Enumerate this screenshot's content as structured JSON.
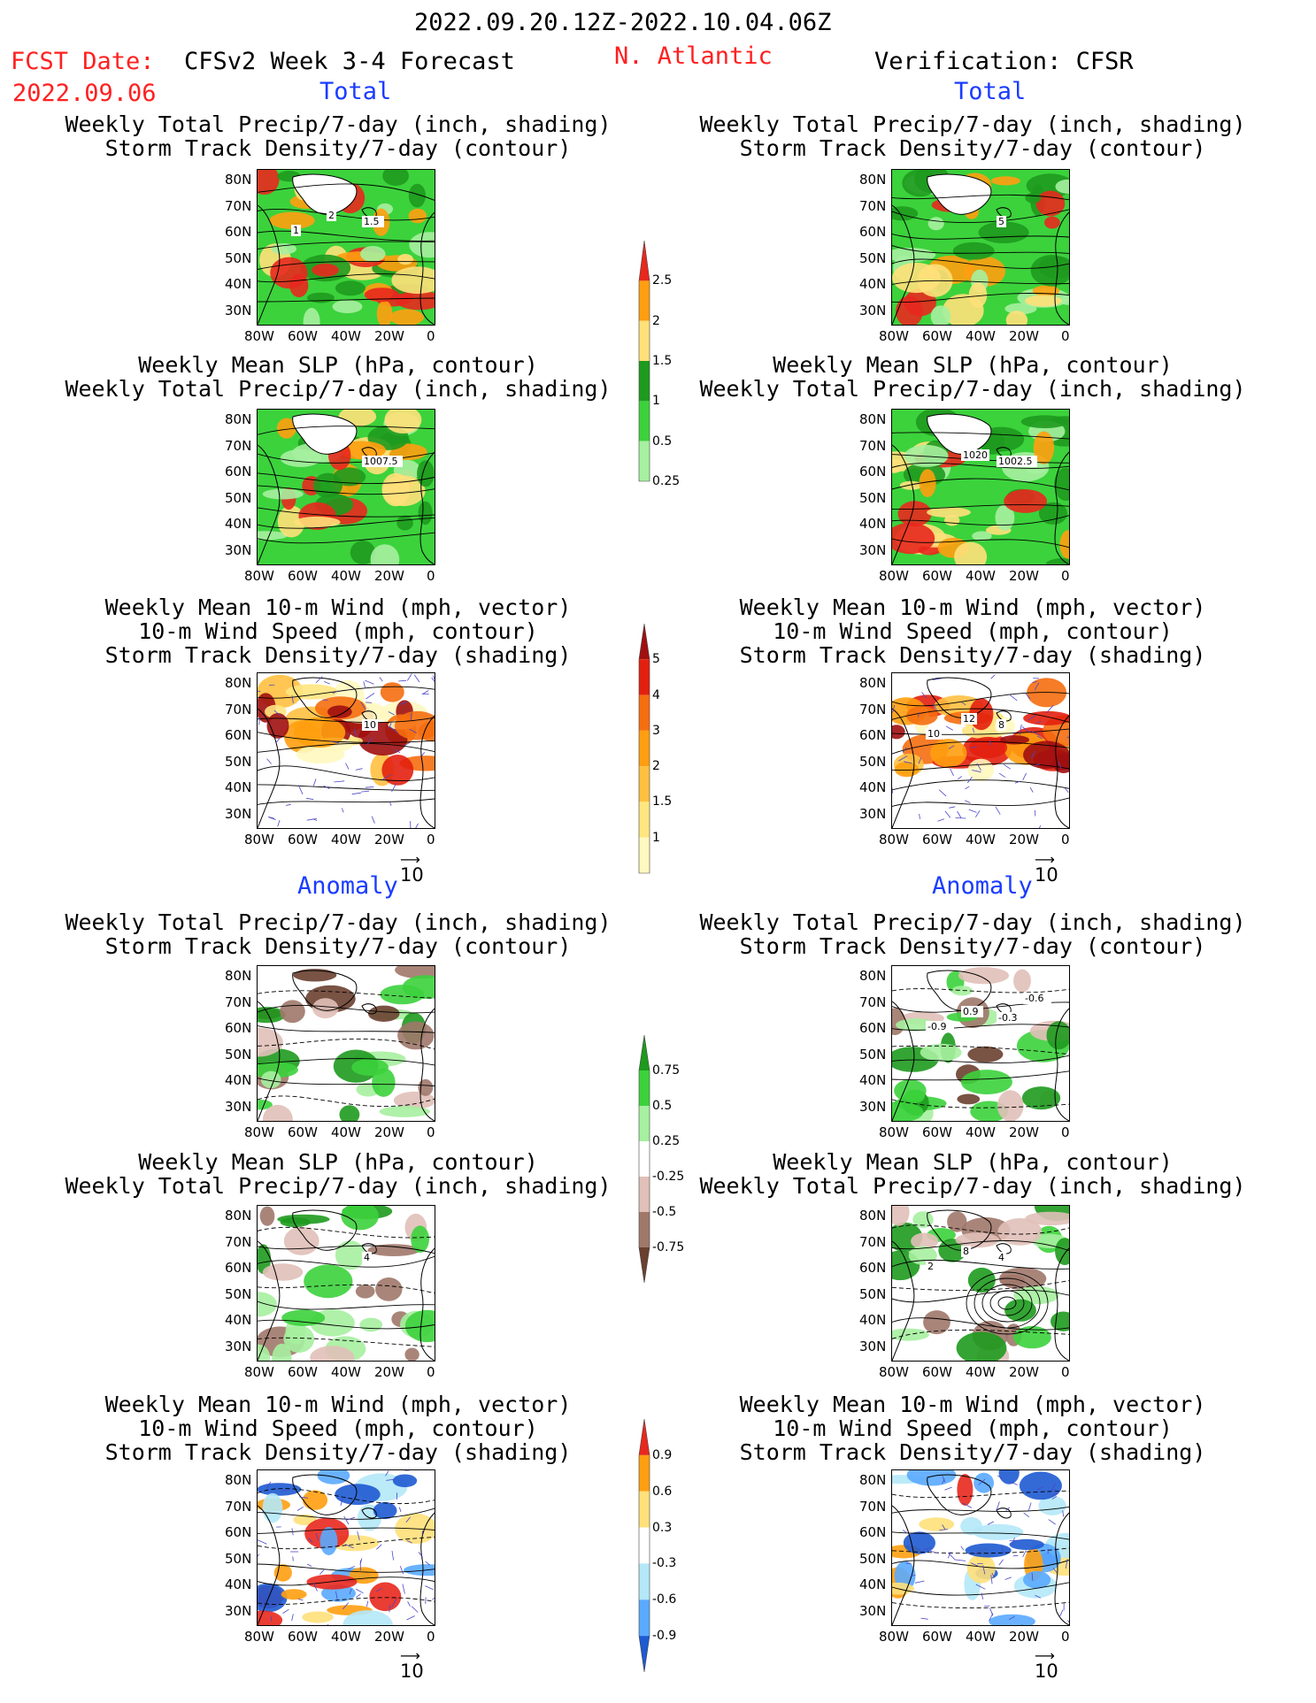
{
  "header": {
    "date_range": "2022.09.20.12Z-2022.10.04.06Z",
    "fcst_label": "FCST Date:",
    "fcst_date": "2022.09.06",
    "model": "CFSv2 Week 3-4 Forecast",
    "region": "N. Atlantic",
    "verification": "Verification: CFSR"
  },
  "sections": {
    "total": "Total",
    "anomaly": "Anomaly"
  },
  "panel_titles": {
    "precip_storm": [
      "Weekly Total Precip/7-day (inch, shading)",
      "Storm Track Density/7-day (contour)"
    ],
    "slp_precip": [
      "Weekly Mean SLP (hPa, contour)",
      "Weekly Total Precip/7-day (inch, shading)"
    ],
    "wind_storm": [
      "Weekly Mean 10-m Wind (mph, vector)",
      "10-m Wind Speed (mph, contour)",
      "Storm Track Density/7-day (shading)"
    ]
  },
  "axes": {
    "lat": [
      "80N",
      "70N",
      "60N",
      "50N",
      "40N",
      "30N"
    ],
    "lon": [
      "80W",
      "60W",
      "40W",
      "20W",
      "0"
    ]
  },
  "vector_scale": "10",
  "contour_labels": {
    "fc_total_precip": [
      "1.5",
      "2",
      "1"
    ],
    "fc_total_slp": [
      "1007.5"
    ],
    "fc_total_wind": [
      "10"
    ],
    "ob_total_precip": [
      "5"
    ],
    "ob_total_slp": [
      "1002.5",
      "1020"
    ],
    "ob_total_wind": [
      "8",
      "12",
      "10"
    ],
    "ob_anom_precip": [
      "-0.3",
      "0.9",
      "-0.9",
      "-0.6"
    ],
    "ob_anom_slp": [
      "4",
      "8",
      "2"
    ],
    "fc_anom_slp": [
      "4"
    ]
  },
  "colorbars": {
    "total_precip": {
      "labels": [
        "2.5",
        "2",
        "1.5",
        "1",
        "0.5",
        "0.25"
      ],
      "colors": [
        "#e8281e",
        "#ff9e10",
        "#ffe07a",
        "#1e9a1e",
        "#3cd23c",
        "#a6f0a0"
      ]
    },
    "total_storm": {
      "labels": [
        "5",
        "4",
        "3",
        "2",
        "1.5",
        "1"
      ],
      "colors": [
        "#a01010",
        "#e32010",
        "#f56e10",
        "#ff9e10",
        "#ffc040",
        "#ffe680",
        "#fff8c0"
      ]
    },
    "anom_precip": {
      "labels": [
        "0.75",
        "0.5",
        "0.25",
        "-0.25",
        "-0.5",
        "-0.75"
      ],
      "colors": [
        "#1e9a1e",
        "#3cd23c",
        "#a6f0a0",
        "#ffffff",
        "#e0c0b8",
        "#a0786a",
        "#6a4030"
      ]
    },
    "anom_storm": {
      "labels": [
        "0.9",
        "0.6",
        "0.3",
        "-0.3",
        "-0.6",
        "-0.9"
      ],
      "colors": [
        "#e8281e",
        "#ff9e10",
        "#ffe07a",
        "#ffffff",
        "#b4e8f8",
        "#5aaaff",
        "#1e5ad2"
      ]
    }
  }
}
